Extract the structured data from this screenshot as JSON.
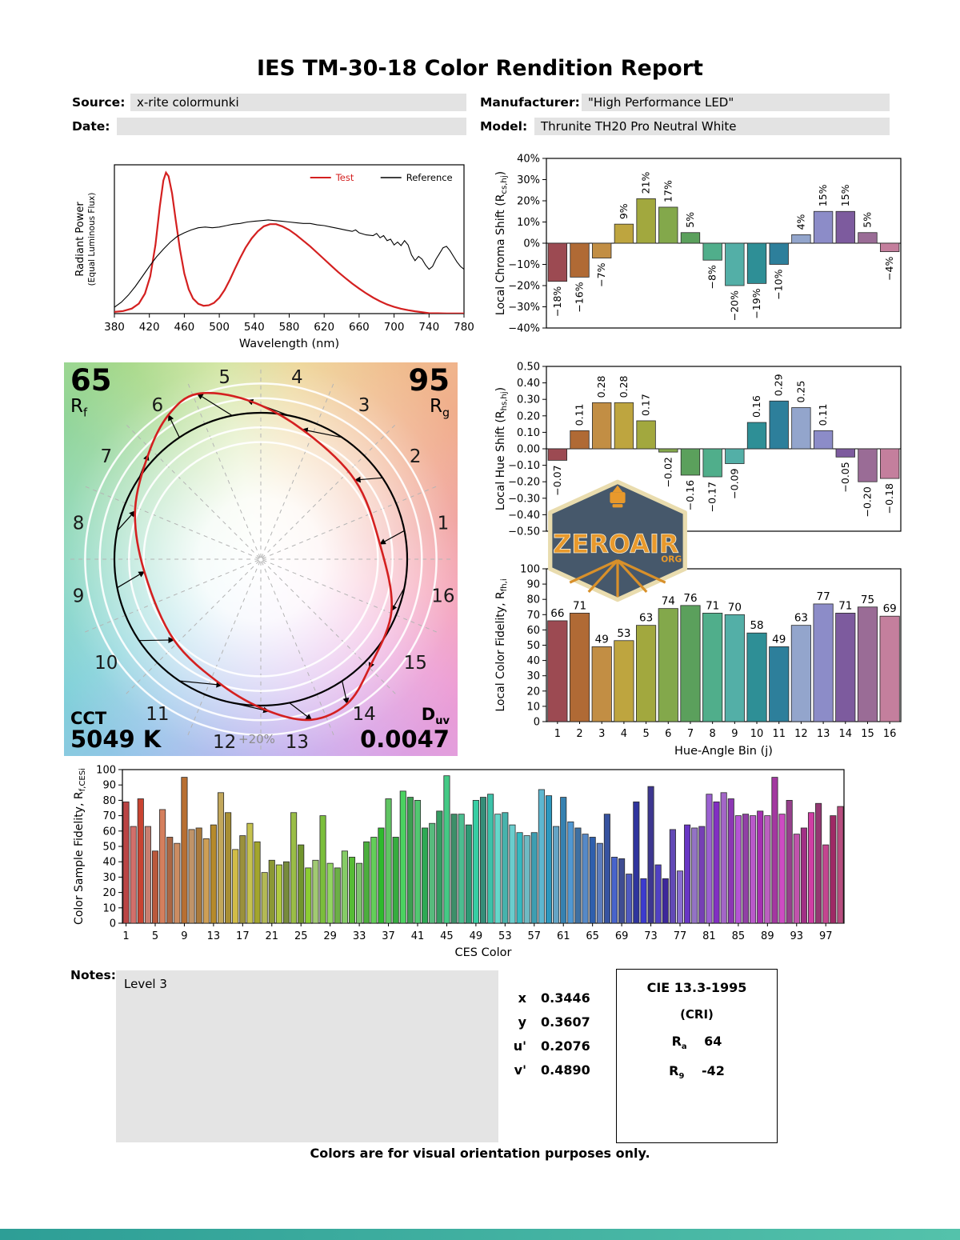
{
  "page": {
    "title": "IES TM-30-18 Color Rendition Report",
    "footer": "Colors are for visual orientation purposes only."
  },
  "header": {
    "source_label": "Source:",
    "source_value": "x-rite colormunki",
    "manufacturer_label": "Manufacturer:",
    "manufacturer_value": "\"High Performance LED\"",
    "date_label": "Date:",
    "date_value": "",
    "model_label": "Model:",
    "model_value": "Thrunite TH20 Pro Neutral White"
  },
  "notes": {
    "label": "Notes:",
    "value": "Level 3"
  },
  "chromaticity": {
    "rows": [
      {
        "label": "x",
        "value": "0.3446"
      },
      {
        "label": "y",
        "value": "0.3607"
      },
      {
        "label": "u'",
        "value": "0.2076"
      },
      {
        "label": "v'",
        "value": "0.4890"
      }
    ]
  },
  "cri": {
    "title": "CIE 13.3-1995",
    "subtitle": "(CRI)",
    "rows": [
      {
        "base": "R",
        "sub": "a",
        "value": "64"
      },
      {
        "base": "R",
        "sub": "9",
        "value": "-42"
      }
    ]
  },
  "watermark": {
    "name": "ZEROAIR",
    "suffix": "ORG"
  },
  "cvg": {
    "rf_value": "65",
    "rf_base": "R",
    "rf_sub": "f",
    "rg_value": "95",
    "rg_base": "R",
    "rg_sub": "g",
    "cct_label": "CCT",
    "cct_value": "5049 K",
    "duv_base": "D",
    "duv_sub": "uv",
    "duv_value": "0.0047",
    "ring_label": "+20%",
    "bin_labels": [
      "1",
      "2",
      "3",
      "4",
      "5",
      "6",
      "7",
      "8",
      "9",
      "10",
      "11",
      "12",
      "13",
      "14",
      "15",
      "16"
    ],
    "wheel_colors": [
      "#ef9a96",
      "#f0ab8c",
      "#f0bd8d",
      "#ecd28f",
      "#cfe39a",
      "#a8d98a",
      "#8fd49a",
      "#85d4b0",
      "#7ed3c3",
      "#7fd0d8",
      "#94c4e8",
      "#aab3ec",
      "#c3a8ec",
      "#daa0e4",
      "#ec9cd4",
      "#f49cb4"
    ]
  },
  "hue_bin_colors": [
    "#9c4a52",
    "#b06a35",
    "#c28e44",
    "#bea53f",
    "#a2a83e",
    "#83a84b",
    "#5ba05c",
    "#50ae8b",
    "#53afa7",
    "#2e8f96",
    "#2d7f9b",
    "#93a5cc",
    "#8c8cc8",
    "#7d5b9e",
    "#9a6c96",
    "#c47f9d"
  ],
  "chart_data": [
    {
      "id": "spd",
      "type": "line",
      "xlabel": "Wavelength (nm)",
      "ylabel_lines": [
        "Radiant Power",
        "(Equal Luminous Flux)"
      ],
      "xlim": [
        380,
        780
      ],
      "xtick_step": 40,
      "ylim": [
        0,
        1.04
      ],
      "legend": [
        {
          "label": "Test",
          "color": "#d42020"
        },
        {
          "label": "Reference",
          "color": "#000000"
        }
      ],
      "series": [
        {
          "name": "Test",
          "color": "#d42020",
          "width": 2.2,
          "points": [
            [
              380,
              0.012
            ],
            [
              390,
              0.018
            ],
            [
              400,
              0.035
            ],
            [
              408,
              0.07
            ],
            [
              415,
              0.14
            ],
            [
              421,
              0.26
            ],
            [
              427,
              0.48
            ],
            [
              432,
              0.75
            ],
            [
              436,
              0.93
            ],
            [
              439,
              0.985
            ],
            [
              442,
              0.96
            ],
            [
              446,
              0.84
            ],
            [
              450,
              0.66
            ],
            [
              455,
              0.45
            ],
            [
              460,
              0.28
            ],
            [
              465,
              0.17
            ],
            [
              470,
              0.105
            ],
            [
              476,
              0.068
            ],
            [
              482,
              0.055
            ],
            [
              488,
              0.058
            ],
            [
              494,
              0.075
            ],
            [
              500,
              0.11
            ],
            [
              506,
              0.165
            ],
            [
              512,
              0.235
            ],
            [
              518,
              0.315
            ],
            [
              524,
              0.39
            ],
            [
              530,
              0.46
            ],
            [
              537,
              0.525
            ],
            [
              544,
              0.575
            ],
            [
              551,
              0.61
            ],
            [
              558,
              0.625
            ],
            [
              565,
              0.625
            ],
            [
              572,
              0.61
            ],
            [
              580,
              0.585
            ],
            [
              588,
              0.55
            ],
            [
              596,
              0.51
            ],
            [
              604,
              0.47
            ],
            [
              612,
              0.425
            ],
            [
              620,
              0.38
            ],
            [
              628,
              0.335
            ],
            [
              636,
              0.29
            ],
            [
              644,
              0.25
            ],
            [
              652,
              0.21
            ],
            [
              660,
              0.175
            ],
            [
              668,
              0.142
            ],
            [
              676,
              0.112
            ],
            [
              684,
              0.086
            ],
            [
              692,
              0.064
            ],
            [
              700,
              0.047
            ],
            [
              708,
              0.034
            ],
            [
              716,
              0.024
            ],
            [
              724,
              0.016
            ],
            [
              730,
              0.011
            ],
            [
              735,
              0.007
            ],
            [
              740,
              0.003
            ],
            [
              750,
              0.002
            ],
            [
              760,
              0.001
            ],
            [
              780,
              0.001
            ]
          ]
        },
        {
          "name": "Reference",
          "color": "#000000",
          "width": 1.1,
          "points": [
            [
              380,
              0.045
            ],
            [
              388,
              0.08
            ],
            [
              396,
              0.13
            ],
            [
              404,
              0.19
            ],
            [
              412,
              0.26
            ],
            [
              420,
              0.33
            ],
            [
              428,
              0.395
            ],
            [
              436,
              0.45
            ],
            [
              444,
              0.5
            ],
            [
              452,
              0.54
            ],
            [
              460,
              0.565
            ],
            [
              468,
              0.585
            ],
            [
              476,
              0.6
            ],
            [
              484,
              0.605
            ],
            [
              492,
              0.6
            ],
            [
              500,
              0.605
            ],
            [
              508,
              0.615
            ],
            [
              516,
              0.625
            ],
            [
              524,
              0.63
            ],
            [
              532,
              0.64
            ],
            [
              540,
              0.645
            ],
            [
              548,
              0.65
            ],
            [
              556,
              0.655
            ],
            [
              564,
              0.65
            ],
            [
              572,
              0.645
            ],
            [
              580,
              0.64
            ],
            [
              588,
              0.635
            ],
            [
              596,
              0.63
            ],
            [
              604,
              0.63
            ],
            [
              612,
              0.62
            ],
            [
              620,
              0.615
            ],
            [
              628,
              0.605
            ],
            [
              636,
              0.595
            ],
            [
              644,
              0.585
            ],
            [
              652,
              0.575
            ],
            [
              656,
              0.585
            ],
            [
              660,
              0.565
            ],
            [
              668,
              0.55
            ],
            [
              676,
              0.545
            ],
            [
              680,
              0.56
            ],
            [
              684,
              0.53
            ],
            [
              688,
              0.545
            ],
            [
              692,
              0.51
            ],
            [
              696,
              0.52
            ],
            [
              700,
              0.48
            ],
            [
              704,
              0.5
            ],
            [
              708,
              0.475
            ],
            [
              712,
              0.51
            ],
            [
              716,
              0.48
            ],
            [
              720,
              0.41
            ],
            [
              724,
              0.37
            ],
            [
              728,
              0.4
            ],
            [
              732,
              0.38
            ],
            [
              736,
              0.34
            ],
            [
              740,
              0.31
            ],
            [
              744,
              0.33
            ],
            [
              748,
              0.38
            ],
            [
              752,
              0.42
            ],
            [
              756,
              0.46
            ],
            [
              760,
              0.47
            ],
            [
              764,
              0.44
            ],
            [
              768,
              0.4
            ],
            [
              772,
              0.36
            ],
            [
              776,
              0.33
            ],
            [
              780,
              0.31
            ]
          ]
        }
      ]
    },
    {
      "id": "chroma_shift",
      "type": "bar",
      "ylabel_parts": [
        [
          "Local Chroma Shift (R",
          ""
        ],
        [
          "cs,hj",
          "sub"
        ],
        [
          ")",
          ""
        ]
      ],
      "ylim": [
        -40,
        40
      ],
      "ytick_step": 10,
      "ytick_suffix": "%",
      "categories": [
        1,
        2,
        3,
        4,
        5,
        6,
        7,
        8,
        9,
        10,
        11,
        12,
        13,
        14,
        15,
        16
      ],
      "values": [
        -18,
        -16,
        -7,
        9,
        21,
        17,
        5,
        -8,
        -20,
        -19,
        -10,
        4,
        15,
        15,
        5,
        -4
      ],
      "bar_labels": [
        "−18%",
        "−16%",
        "−7%",
        "9%",
        "21%",
        "17%",
        "5%",
        "−8%",
        "−20%",
        "−19%",
        "−10%",
        "4%",
        "15%",
        "15%",
        "5%",
        "−4%"
      ],
      "rotate_labels": true
    },
    {
      "id": "hue_shift",
      "type": "bar",
      "ylabel_parts": [
        [
          "Local Hue Shift (R",
          ""
        ],
        [
          "hs,hj",
          "sub"
        ],
        [
          ")",
          ""
        ]
      ],
      "ylim": [
        -0.5,
        0.5
      ],
      "ytick_step": 0.1,
      "ytick_decimals": 2,
      "categories": [
        1,
        2,
        3,
        4,
        5,
        6,
        7,
        8,
        9,
        10,
        11,
        12,
        13,
        14,
        15,
        16
      ],
      "values": [
        -0.07,
        0.11,
        0.28,
        0.28,
        0.17,
        -0.02,
        -0.16,
        -0.17,
        -0.09,
        0.16,
        0.29,
        0.25,
        0.11,
        -0.05,
        -0.2,
        -0.18
      ],
      "bar_labels": [
        "−0.07",
        "0.11",
        "0.28",
        "0.28",
        "0.17",
        "−0.02",
        "−0.16",
        "−0.17",
        "−0.09",
        "0.16",
        "0.29",
        "0.25",
        "0.11",
        "−0.05",
        "−0.20",
        "−0.18"
      ],
      "rotate_labels": true
    },
    {
      "id": "local_fidelity",
      "type": "bar",
      "ylabel_parts": [
        [
          "Local Color Fidelity, R",
          ""
        ],
        [
          "fh,i",
          "sub"
        ]
      ],
      "xlabel": "Hue-Angle Bin (j)",
      "ylim": [
        0,
        100
      ],
      "ytick_step": 10,
      "categories": [
        1,
        2,
        3,
        4,
        5,
        6,
        7,
        8,
        9,
        10,
        11,
        12,
        13,
        14,
        15,
        16
      ],
      "values": [
        66,
        71,
        49,
        53,
        63,
        74,
        76,
        71,
        70,
        58,
        49,
        63,
        77,
        71,
        75,
        69
      ],
      "bar_labels": [
        "66",
        "71",
        "49",
        "53",
        "63",
        "74",
        "76",
        "71",
        "70",
        "58",
        "49",
        "63",
        "77",
        "71",
        "75",
        "69"
      ],
      "rotate_labels": false,
      "xtick_labels": [
        "1",
        "2",
        "3",
        "4",
        "5",
        "6",
        "7",
        "8",
        "9",
        "10",
        "11",
        "12",
        "13",
        "14",
        "15",
        "16"
      ]
    },
    {
      "id": "ces_fidelity",
      "type": "bar",
      "ylabel_parts": [
        [
          "Color Sample Fidelity, R",
          ""
        ],
        [
          "f,CESi",
          "sub"
        ]
      ],
      "xlabel": "CES Color",
      "ylim": [
        0,
        100
      ],
      "ytick_step": 10,
      "xtick_every": 4,
      "values": [
        79,
        63,
        81,
        63,
        47,
        74,
        56,
        52,
        95,
        61,
        62,
        55,
        64,
        85,
        72,
        48,
        57,
        65,
        53,
        33,
        41,
        38,
        40,
        72,
        51,
        36,
        41,
        70,
        39,
        36,
        47,
        43,
        39,
        53,
        56,
        62,
        81,
        56,
        86,
        82,
        80,
        62,
        65,
        73,
        96,
        71,
        71,
        64,
        80,
        82,
        84,
        71,
        72,
        64,
        59,
        57,
        59,
        87,
        83,
        63,
        82,
        66,
        62,
        58,
        56,
        52,
        71,
        43,
        42,
        32,
        79,
        29,
        89,
        38,
        29,
        61,
        34,
        64,
        62,
        63,
        84,
        79,
        85,
        81,
        70,
        71,
        70,
        73,
        70,
        95,
        71,
        80,
        58,
        62,
        72,
        78,
        51,
        70,
        76
      ]
    }
  ]
}
